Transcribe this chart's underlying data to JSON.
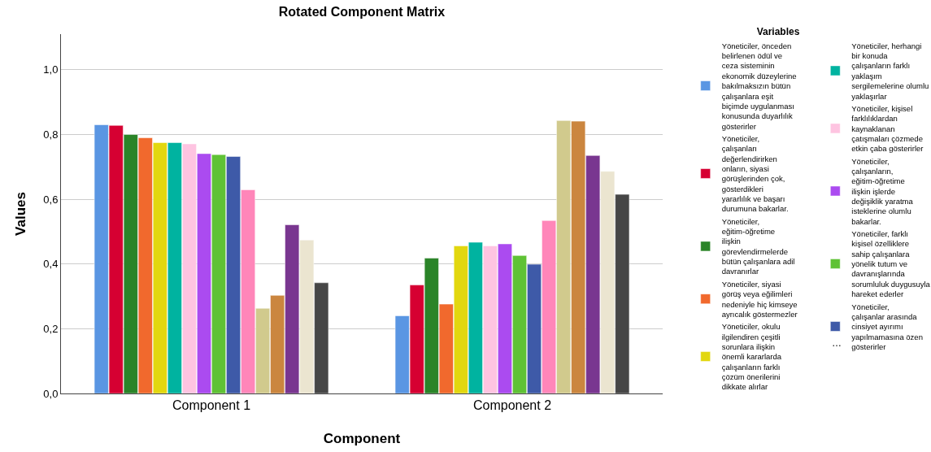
{
  "chart_data": {
    "type": "bar",
    "title": "Rotated Component Matrix",
    "xlabel": "Component",
    "ylabel": "Values",
    "legend_title": "Variables",
    "categories": [
      "Component 1",
      "Component 2"
    ],
    "ylim": [
      0,
      1.11
    ],
    "yticks": [
      {
        "value": 0,
        "label": "0,0"
      },
      {
        "value": 0.2,
        "label": "0,2"
      },
      {
        "value": 0.4,
        "label": "0,4"
      },
      {
        "value": 0.6,
        "label": "0,6"
      },
      {
        "value": 0.8,
        "label": "0,8"
      },
      {
        "value": 1.0,
        "label": "1,0"
      }
    ],
    "grid": "y",
    "legend": "right",
    "annotations": [
      "…"
    ],
    "series": [
      {
        "name": "Yöneticiler, önceden belirlenen ödül ve ceza sisteminin ekonomik düzeylerine bakılmaksızın bütün çalışanlara eşit biçimde uygulanması konusunda duyarlılık gösterirler",
        "color": "#5a96e3",
        "values": [
          0.83,
          0.24
        ]
      },
      {
        "name": "Yöneticiler, çalışanları değerlendirirken onların, siyasi görüşlerinden çok, gösterdikleri yararlılık ve başarı durumuna bakarlar.",
        "color": "#d60032",
        "values": [
          0.828,
          0.335
        ]
      },
      {
        "name": "Yöneticiler, eğitim-öğretime ilişkin görevlendirmelerde bütün çalışanlara adil davranırlar",
        "color": "#2a8428",
        "values": [
          0.8,
          0.418
        ]
      },
      {
        "name": "Yöneticiler, siyasi görüş veya eğilimleri nedeniyle hiç kimseye ayrıcalık göstermezler",
        "color": "#f1692d",
        "values": [
          0.79,
          0.276
        ]
      },
      {
        "name": "Yöneticiler, okulu ilgilendiren çeşitli sorunlara ilişkin önemli kararlarda çalışanların farklı çözüm önerilerini dikkate alırlar",
        "color": "#e2d70f",
        "values": [
          0.775,
          0.456
        ]
      },
      {
        "name": "Yöneticiler, herhangi bir konuda çalışanların farklı yaklaşım sergilemelerine olumlu yaklaşırlar",
        "color": "#00b3a0",
        "values": [
          0.775,
          0.467
        ]
      },
      {
        "name": "Yöneticiler, kişisel farklılıklardan kaynaklanan çatışmaları çözmede etkin çaba gösterirler",
        "color": "#fec4e1",
        "values": [
          0.771,
          0.456
        ]
      },
      {
        "name": "Yöneticiler, çalışanların, eğitim-öğretime ilişkin işlerde değişiklik yaratma isteklerine olumlu bakarlar.",
        "color": "#ab4bf0",
        "values": [
          0.741,
          0.462
        ]
      },
      {
        "name": "Yöneticiler, farklı kişisel özelliklere sahip çalışanlara yönelik tutum ve davranışlarında sorumluluk duygusuyla hareket ederler",
        "color": "#5fc235",
        "values": [
          0.738,
          0.426
        ]
      },
      {
        "name": "Yöneticiler, çalışanlar arasında cinsiyet ayırımı yapılmamasına özen gösterirler",
        "color": "#3e5aa8",
        "values": [
          0.732,
          0.399
        ]
      },
      {
        "color": "#ff86b9",
        "values": [
          0.629,
          0.534
        ]
      },
      {
        "color": "#d1ca8d",
        "values": [
          0.263,
          0.843
        ]
      },
      {
        "color": "#cb863f",
        "values": [
          0.303,
          0.841
        ]
      },
      {
        "color": "#793690",
        "values": [
          0.521,
          0.735
        ]
      },
      {
        "color": "#ebe5d0",
        "values": [
          0.474,
          0.686
        ]
      },
      {
        "color": "#464646",
        "values": [
          0.342,
          0.615
        ]
      }
    ]
  }
}
